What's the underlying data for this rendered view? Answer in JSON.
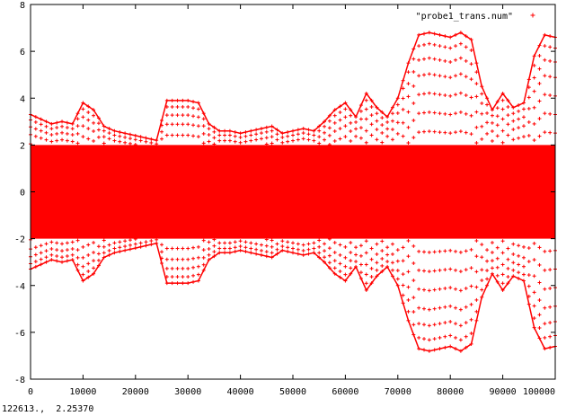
{
  "window": {
    "status_readout": "122613.,  2.25370"
  },
  "colors": {
    "background": "#ffffff",
    "axis": "#000000",
    "series": "#ff0000"
  },
  "chart_data": {
    "type": "scatter",
    "title": "",
    "xlabel": "",
    "ylabel": "",
    "xlim": [
      0,
      100000
    ],
    "ylim": [
      -8,
      8
    ],
    "grid": false,
    "legend_position": "top-right",
    "x_ticks": [
      0,
      10000,
      20000,
      30000,
      40000,
      50000,
      60000,
      70000,
      80000,
      90000,
      100000
    ],
    "y_ticks": [
      -8,
      -6,
      -4,
      -2,
      0,
      2,
      4,
      6,
      8
    ],
    "x_tick_labels": [
      "0",
      "10000",
      "20000",
      "30000",
      "40000",
      "50000",
      "60000",
      "70000",
      "80000",
      "90000",
      "100000"
    ],
    "y_tick_labels": [
      "-8",
      "-6",
      "-4",
      "-2",
      "0",
      "2",
      "4",
      "6",
      "8"
    ],
    "series": [
      {
        "name": "\"probe1_trans.num\"",
        "marker": "+",
        "color": "#ff0000",
        "envelope_x": [
          0,
          2000,
          4000,
          6000,
          8000,
          10000,
          12000,
          14000,
          16000,
          18000,
          20000,
          22000,
          24000,
          26000,
          28000,
          30000,
          32000,
          34000,
          36000,
          38000,
          40000,
          42000,
          44000,
          46000,
          48000,
          50000,
          52000,
          54000,
          56000,
          58000,
          60000,
          62000,
          64000,
          66000,
          68000,
          70000,
          72000,
          74000,
          76000,
          78000,
          80000,
          82000,
          84000,
          86000,
          88000,
          90000,
          92000,
          94000,
          96000,
          98000,
          100000
        ],
        "envelope_upper": [
          3.3,
          3.1,
          2.9,
          3.0,
          2.9,
          3.8,
          3.5,
          2.8,
          2.6,
          2.5,
          2.4,
          2.3,
          2.2,
          3.9,
          3.9,
          3.9,
          3.8,
          2.9,
          2.6,
          2.6,
          2.5,
          2.6,
          2.7,
          2.8,
          2.5,
          2.6,
          2.7,
          2.6,
          3.0,
          3.5,
          3.8,
          3.2,
          4.2,
          3.6,
          3.2,
          4.0,
          5.5,
          6.7,
          6.8,
          6.7,
          6.6,
          6.8,
          6.5,
          4.5,
          3.5,
          4.2,
          3.6,
          3.8,
          5.8,
          6.7,
          6.6
        ],
        "envelope_lower": [
          -3.3,
          -3.1,
          -2.9,
          -3.0,
          -2.9,
          -3.8,
          -3.5,
          -2.8,
          -2.6,
          -2.5,
          -2.4,
          -2.3,
          -2.2,
          -3.9,
          -3.9,
          -3.9,
          -3.8,
          -2.9,
          -2.6,
          -2.6,
          -2.5,
          -2.6,
          -2.7,
          -2.8,
          -2.5,
          -2.6,
          -2.7,
          -2.6,
          -3.0,
          -3.5,
          -3.8,
          -3.2,
          -4.2,
          -3.6,
          -3.2,
          -4.0,
          -5.5,
          -6.7,
          -6.8,
          -6.7,
          -6.6,
          -6.8,
          -6.5,
          -4.5,
          -3.5,
          -4.2,
          -3.6,
          -3.8,
          -5.8,
          -6.7,
          -6.6
        ],
        "dense_core": 2.0
      }
    ]
  }
}
